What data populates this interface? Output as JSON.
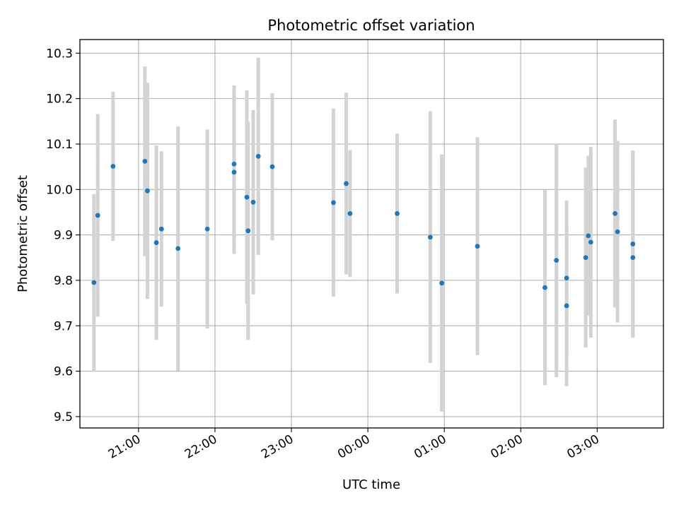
{
  "chart_data": {
    "type": "scatter",
    "title": "Photometric offset variation",
    "xlabel": "UTC time",
    "ylabel": "Photometric offset",
    "xlim": [
      "20:14",
      "24h+03:52"
    ],
    "ylim": [
      9.475,
      10.33
    ],
    "x_ticks": [
      "21:00",
      "22:00",
      "23:00",
      "00:00",
      "01:00",
      "02:00",
      "03:00"
    ],
    "y_ticks": [
      "9.5",
      "9.6",
      "9.7",
      "9.8",
      "9.9",
      "10.0",
      "10.1",
      "10.2",
      "10.3"
    ],
    "grid": true,
    "marker_color": "#1f77b4",
    "errorbar_color": "#d3d3d3",
    "points": [
      {
        "time": "20:25",
        "y": 9.795,
        "yerr": 0.195
      },
      {
        "time": "20:28",
        "y": 9.943,
        "yerr": 0.223
      },
      {
        "time": "20:40",
        "y": 10.051,
        "yerr": 0.164
      },
      {
        "time": "21:05",
        "y": 10.062,
        "yerr": 0.209
      },
      {
        "time": "21:07",
        "y": 9.997,
        "yerr": 0.238
      },
      {
        "time": "21:14",
        "y": 9.883,
        "yerr": 0.214
      },
      {
        "time": "21:18",
        "y": 9.913,
        "yerr": 0.171
      },
      {
        "time": "21:31",
        "y": 9.87,
        "yerr": 0.269
      },
      {
        "time": "21:54",
        "y": 9.913,
        "yerr": 0.219
      },
      {
        "time": "22:15",
        "y": 10.056,
        "yerr": 0.173
      },
      {
        "time": "22:15",
        "y": 10.038,
        "yerr": 0.18
      },
      {
        "time": "22:25",
        "y": 9.983,
        "yerr": 0.235
      },
      {
        "time": "22:26",
        "y": 9.909,
        "yerr": 0.24
      },
      {
        "time": "22:30",
        "y": 9.972,
        "yerr": 0.203
      },
      {
        "time": "22:34",
        "y": 10.073,
        "yerr": 0.217
      },
      {
        "time": "22:45",
        "y": 10.05,
        "yerr": 0.162
      },
      {
        "time": "23:33",
        "y": 9.971,
        "yerr": 0.207
      },
      {
        "time": "23:43",
        "y": 10.013,
        "yerr": 0.2
      },
      {
        "time": "23:46",
        "y": 9.947,
        "yerr": 0.14
      },
      {
        "time": "00:23",
        "y": 9.947,
        "yerr": 0.176
      },
      {
        "time": "00:49",
        "y": 9.895,
        "yerr": 0.277
      },
      {
        "time": "00:58",
        "y": 9.794,
        "yerr": 0.283
      },
      {
        "time": "01:26",
        "y": 9.875,
        "yerr": 0.24
      },
      {
        "time": "02:19",
        "y": 9.784,
        "yerr": 0.215
      },
      {
        "time": "02:28",
        "y": 9.844,
        "yerr": 0.257
      },
      {
        "time": "02:36",
        "y": 9.805,
        "yerr": 0.171
      },
      {
        "time": "02:36",
        "y": 9.744,
        "yerr": 0.177
      },
      {
        "time": "02:51",
        "y": 9.85,
        "yerr": 0.198
      },
      {
        "time": "02:53",
        "y": 9.898,
        "yerr": 0.176
      },
      {
        "time": "02:55",
        "y": 9.884,
        "yerr": 0.21
      },
      {
        "time": "03:14",
        "y": 9.947,
        "yerr": 0.207
      },
      {
        "time": "03:16",
        "y": 9.907,
        "yerr": 0.2
      },
      {
        "time": "03:28",
        "y": 9.88,
        "yerr": 0.206
      },
      {
        "time": "03:28",
        "y": 9.85,
        "yerr": 0.176
      }
    ]
  }
}
